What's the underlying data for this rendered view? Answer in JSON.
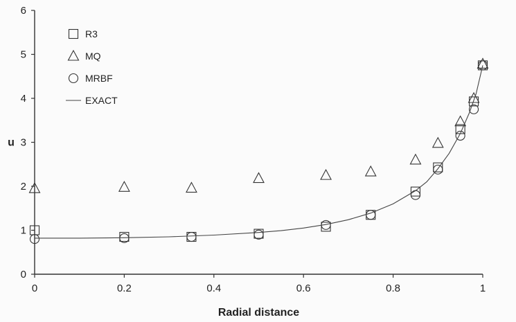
{
  "chart_data": {
    "type": "scatter",
    "xlabel": "Radial distance",
    "ylabel": "u",
    "xlim": [
      0,
      1
    ],
    "ylim": [
      0,
      6
    ],
    "x_ticks": [
      "0",
      "0.2",
      "0.4",
      "0.6",
      "0.8",
      "1"
    ],
    "y_ticks": [
      "0",
      "1",
      "2",
      "3",
      "4",
      "5",
      "6"
    ],
    "grid": false,
    "legend_position": "top-left",
    "series": [
      {
        "name": "R3",
        "marker": "square",
        "points": [
          [
            0,
            1.0
          ],
          [
            0.2,
            0.85
          ],
          [
            0.35,
            0.85
          ],
          [
            0.5,
            0.92
          ],
          [
            0.65,
            1.08
          ],
          [
            0.75,
            1.35
          ],
          [
            0.85,
            1.88
          ],
          [
            0.9,
            2.43
          ],
          [
            0.95,
            3.3
          ],
          [
            0.98,
            3.93
          ],
          [
            1.0,
            4.75
          ]
        ]
      },
      {
        "name": "MQ",
        "marker": "triangle",
        "points": [
          [
            0,
            1.95
          ],
          [
            0.2,
            1.98
          ],
          [
            0.35,
            1.96
          ],
          [
            0.5,
            2.18
          ],
          [
            0.65,
            2.25
          ],
          [
            0.75,
            2.33
          ],
          [
            0.85,
            2.6
          ],
          [
            0.9,
            2.98
          ],
          [
            0.95,
            3.47
          ],
          [
            0.98,
            4.0
          ],
          [
            1.0,
            4.78
          ]
        ]
      },
      {
        "name": "MRBF",
        "marker": "circle",
        "points": [
          [
            0,
            0.8
          ],
          [
            0.2,
            0.82
          ],
          [
            0.35,
            0.85
          ],
          [
            0.5,
            0.9
          ],
          [
            0.65,
            1.12
          ],
          [
            0.75,
            1.35
          ],
          [
            0.85,
            1.8
          ],
          [
            0.9,
            2.38
          ],
          [
            0.95,
            3.15
          ],
          [
            0.98,
            3.75
          ],
          [
            1.0,
            4.75
          ]
        ]
      },
      {
        "name": "EXACT",
        "marker": "line",
        "x": [
          0,
          0.1,
          0.2,
          0.3,
          0.4,
          0.5,
          0.55,
          0.6,
          0.65,
          0.7,
          0.75,
          0.8,
          0.85,
          0.875,
          0.9,
          0.925,
          0.95,
          0.97,
          0.985,
          1.0
        ],
        "y": [
          0.82,
          0.82,
          0.83,
          0.85,
          0.89,
          0.95,
          0.99,
          1.05,
          1.13,
          1.24,
          1.39,
          1.6,
          1.9,
          2.1,
          2.4,
          2.75,
          3.2,
          3.67,
          4.1,
          4.75
        ]
      }
    ]
  }
}
